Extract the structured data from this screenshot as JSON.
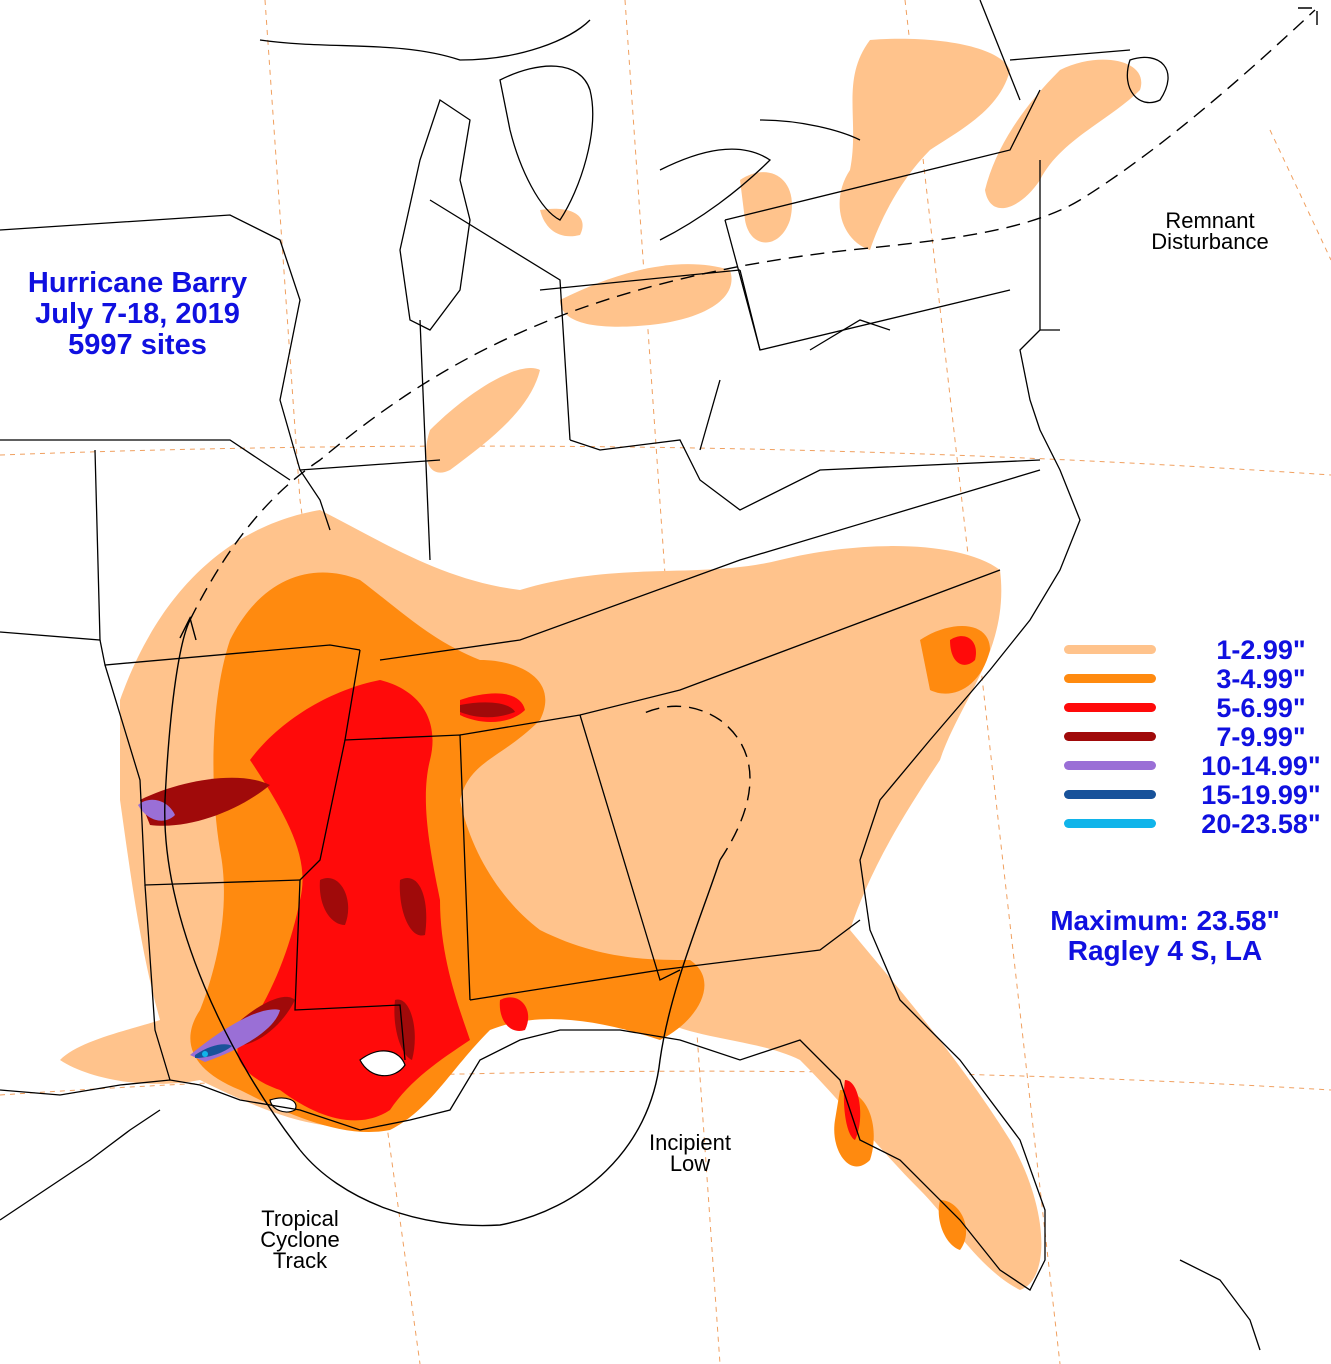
{
  "title": {
    "line1": "Hurricane Barry",
    "line2": "July 7-18, 2019",
    "line3": "5997 sites"
  },
  "annotations": {
    "remnant_line1": "Remnant",
    "remnant_line2": "Disturbance",
    "incipient_line1": "Incipient",
    "incipient_line2": "Low",
    "track_line1": "Tropical",
    "track_line2": "Cyclone",
    "track_line3": "Track"
  },
  "legend": {
    "items": [
      {
        "label": "1-2.99\"",
        "color": "#ffc38c"
      },
      {
        "label": "3-4.99\"",
        "color": "#ff8a0f"
      },
      {
        "label": "5-6.99\"",
        "color": "#ff0a0a"
      },
      {
        "label": "7-9.99\"",
        "color": "#a00a0a"
      },
      {
        "label": "10-14.99\"",
        "color": "#9a6fd6"
      },
      {
        "label": "15-19.99\"",
        "color": "#18529a"
      },
      {
        "label": "20-23.58\"",
        "color": "#10b4ea"
      }
    ]
  },
  "maximum": {
    "line1": "Maximum:  23.58\"",
    "line2": "Ragley 4 S, LA"
  },
  "colors": {
    "text": "#1010e0",
    "graticule": "#f0a060",
    "borders": "#000000"
  }
}
